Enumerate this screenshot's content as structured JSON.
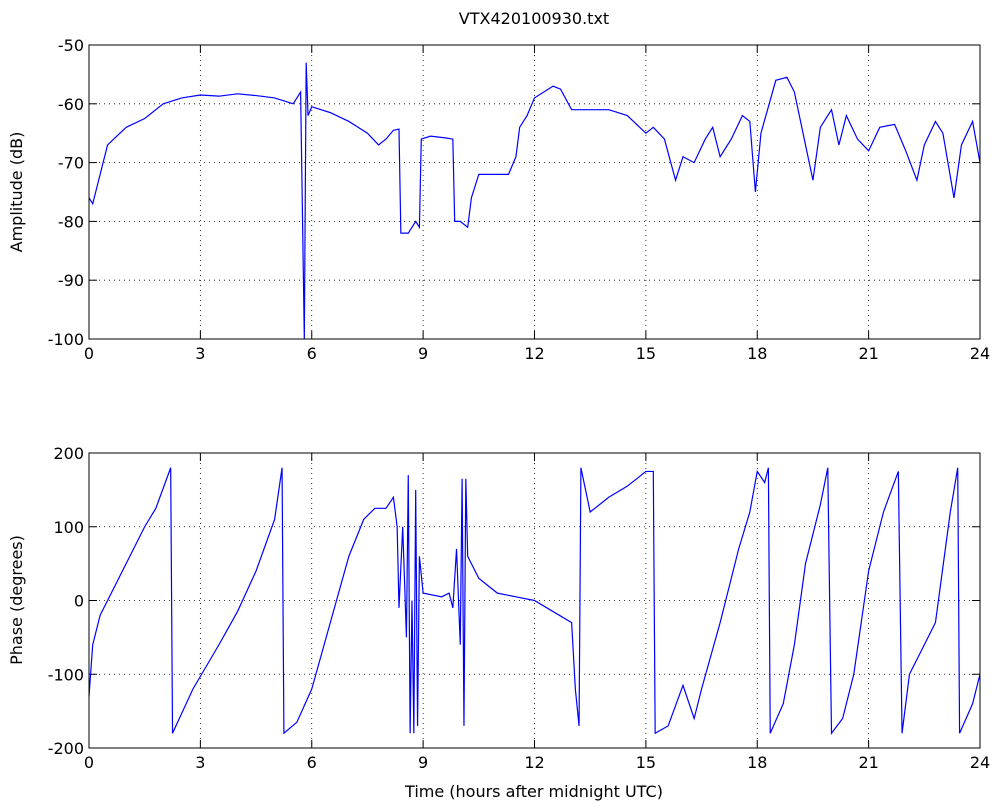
{
  "chart_data": [
    {
      "type": "line",
      "title": "VTX420100930.txt",
      "ylabel": "Amplitude (dB)",
      "grid": true,
      "xlim": [
        0,
        24
      ],
      "xticks": [
        0,
        3,
        6,
        9,
        12,
        15,
        18,
        21,
        24
      ],
      "ylim": [
        -100,
        -50
      ],
      "yticks": [
        -100,
        -90,
        -80,
        -70,
        -60,
        -50
      ],
      "x": [
        0,
        0.1,
        0.3,
        0.5,
        1,
        1.5,
        2,
        2.5,
        3,
        3.5,
        4,
        4.5,
        5,
        5.5,
        5.7,
        5.8,
        5.85,
        5.9,
        6,
        6.5,
        7,
        7.5,
        7.8,
        8,
        8.2,
        8.35,
        8.4,
        8.6,
        8.8,
        8.9,
        8.95,
        9.2,
        9.6,
        9.8,
        9.85,
        10,
        10.2,
        10.3,
        10.5,
        11,
        11.3,
        11.5,
        11.6,
        11.8,
        12,
        12.5,
        12.7,
        13,
        13.5,
        14,
        14.5,
        15,
        15.2,
        15.5,
        15.8,
        16,
        16.3,
        16.6,
        16.8,
        17,
        17.3,
        17.6,
        17.8,
        17.95,
        18.1,
        18.5,
        18.8,
        19,
        19.3,
        19.5,
        19.7,
        20,
        20.2,
        20.4,
        20.7,
        21,
        21.3,
        21.7,
        22,
        22.3,
        22.5,
        22.8,
        23,
        23.3,
        23.5,
        23.8,
        24
      ],
      "series": [
        {
          "color": "#0000ff",
          "values": [
            -76,
            -77,
            -72,
            -67,
            -64,
            -62.5,
            -60,
            -59,
            -58.5,
            -58.7,
            -58.3,
            -58.6,
            -59,
            -60,
            -58,
            -100,
            -53,
            -62,
            -60.5,
            -61.5,
            -63,
            -65,
            -67,
            -66,
            -64.5,
            -64.3,
            -82,
            -82,
            -80,
            -81,
            -66,
            -65.5,
            -65.8,
            -66,
            -80,
            -80,
            -81,
            -76,
            -72,
            -72,
            -72,
            -69,
            -64,
            -62,
            -59,
            -57,
            -57.5,
            -61,
            -61,
            -61,
            -62,
            -65,
            -64,
            -66,
            -73,
            -69,
            -70,
            -66,
            -64,
            -69,
            -66,
            -62,
            -63,
            -75,
            -65,
            -56,
            -55.5,
            -58,
            -67,
            -73,
            -64,
            -61,
            -67,
            -62,
            -66,
            -68,
            -64,
            -63.5,
            -68,
            -73,
            -67,
            -63,
            -65,
            -76,
            -67,
            -63,
            -70
          ]
        }
      ]
    },
    {
      "type": "line",
      "xlabel": "Time (hours after midnight UTC)",
      "ylabel": "Phase (degrees)",
      "grid": true,
      "xlim": [
        0,
        24
      ],
      "xticks": [
        0,
        3,
        6,
        9,
        12,
        15,
        18,
        21,
        24
      ],
      "ylim": [
        -200,
        200
      ],
      "yticks": [
        -200,
        -100,
        0,
        100,
        200
      ],
      "x": [
        0,
        0.1,
        0.3,
        0.6,
        1,
        1.5,
        1.8,
        2.2,
        2.25,
        2.8,
        3.5,
        4,
        4.5,
        5,
        5.2,
        5.25,
        5.6,
        6,
        6.5,
        7,
        7.4,
        7.7,
        8,
        8.2,
        8.3,
        8.35,
        8.45,
        8.55,
        8.6,
        8.65,
        8.7,
        8.75,
        8.8,
        8.85,
        8.9,
        9,
        9.5,
        9.7,
        9.8,
        9.9,
        10,
        10.05,
        10.1,
        10.15,
        10.2,
        10.5,
        11,
        11.5,
        12,
        12.5,
        13,
        13.1,
        13.2,
        13.25,
        13.5,
        14,
        14.5,
        15,
        15.2,
        15.25,
        15.6,
        16,
        16.3,
        16.5,
        17,
        17.5,
        17.8,
        18,
        18.2,
        18.3,
        18.35,
        18.7,
        19,
        19.3,
        19.7,
        19.9,
        20,
        20.3,
        20.6,
        21,
        21.4,
        21.8,
        21.9,
        22.1,
        22.5,
        22.8,
        23.2,
        23.4,
        23.45,
        23.8,
        24
      ],
      "series": [
        {
          "color": "#0000ff",
          "values": [
            -130,
            -60,
            -20,
            10,
            50,
            100,
            125,
            180,
            -180,
            -120,
            -60,
            -15,
            40,
            110,
            180,
            -180,
            -165,
            -120,
            -30,
            60,
            110,
            125,
            125,
            140,
            100,
            -10,
            100,
            -50,
            170,
            -180,
            0,
            -180,
            150,
            -170,
            60,
            10,
            5,
            10,
            -10,
            70,
            -60,
            165,
            -170,
            165,
            60,
            30,
            10,
            5,
            0,
            -15,
            -30,
            -120,
            -170,
            180,
            120,
            140,
            155,
            175,
            175,
            -180,
            -170,
            -115,
            -160,
            -120,
            -30,
            70,
            120,
            175,
            160,
            180,
            -180,
            -140,
            -60,
            50,
            130,
            180,
            -180,
            -160,
            -100,
            40,
            120,
            175,
            -180,
            -100,
            -60,
            -30,
            120,
            180,
            -180,
            -140,
            -100
          ]
        }
      ]
    }
  ]
}
